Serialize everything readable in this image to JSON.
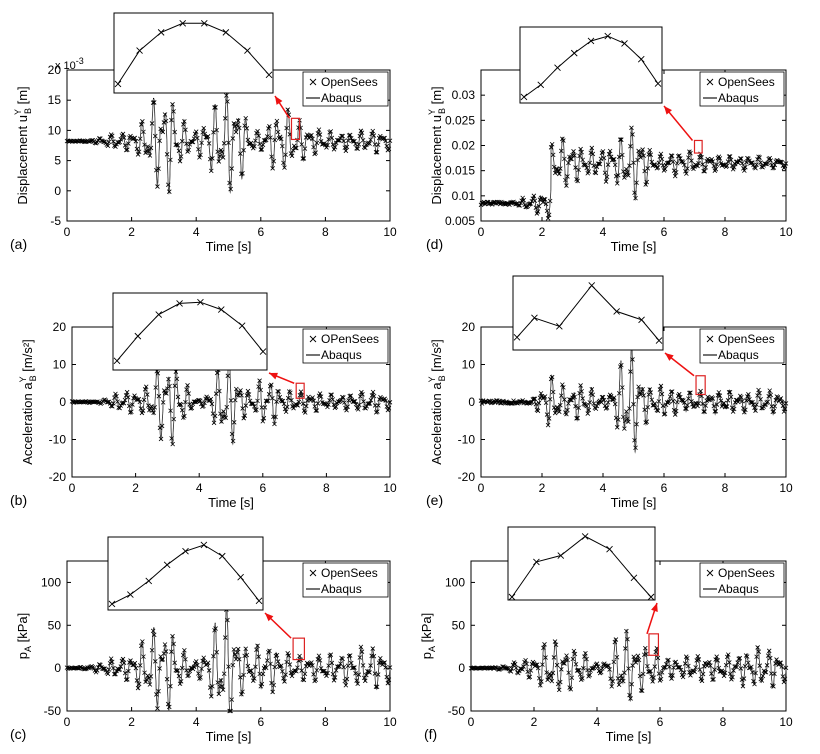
{
  "chart_data": [
    {
      "type": "line",
      "panel_label": "(a)",
      "xlabel": "Time [s]",
      "ylabel": "Displacement u",
      "ylabel_sub": "B",
      "ylabel_sup": "Y",
      "ylabel_unit": " [m]",
      "exponent_label": "x 10",
      "exponent_power": "-3",
      "xlim": [
        0,
        10
      ],
      "ylim": [
        -5,
        20
      ],
      "xticks": [
        "0",
        "2",
        "4",
        "6",
        "8",
        "10"
      ],
      "yticks": [
        "-5",
        "0",
        "5",
        "10",
        "15",
        "20"
      ],
      "legend": [
        "OpenSees",
        "Abaqus"
      ],
      "legend_position": "top-right",
      "grid": false,
      "signal": {
        "base": 8.2,
        "start_base": 8.3,
        "bursts": [
          [
            1.7,
            0.5,
            1.5
          ],
          [
            2.8,
            0.35,
            7
          ],
          [
            3.3,
            0.3,
            5
          ],
          [
            4.6,
            0.4,
            5.5
          ],
          [
            5.2,
            0.3,
            7
          ],
          [
            6.6,
            0.4,
            4
          ],
          [
            7.3,
            0.7,
            2.5
          ],
          [
            9.5,
            0.8,
            2
          ]
        ]
      },
      "zoom_box": {
        "x": [
          6.95,
          7.2
        ],
        "y": [
          8.5,
          12
        ]
      },
      "inset": {
        "points": [
          [
            0,
            0
          ],
          [
            1,
            0.55
          ],
          [
            2,
            0.85
          ],
          [
            3,
            1.0
          ],
          [
            4,
            1.0
          ],
          [
            5,
            0.85
          ],
          [
            6,
            0.55
          ],
          [
            7,
            0.15
          ]
        ],
        "ymin": -0.1,
        "ymax": 1.12
      }
    },
    {
      "type": "line",
      "panel_label": "(b)",
      "xlabel": "Time [s]",
      "ylabel": "Acceleration a",
      "ylabel_sub": "B",
      "ylabel_sup": "Y",
      "ylabel_unit": " [m/s²]",
      "xlim": [
        0,
        10
      ],
      "ylim": [
        -20,
        20
      ],
      "xticks": [
        "0",
        "2",
        "4",
        "6",
        "8",
        "10"
      ],
      "yticks": [
        "-20",
        "-10",
        "0",
        "10",
        "20"
      ],
      "legend": [
        "OPenSees",
        "Abaqus"
      ],
      "legend_position": "top-right",
      "grid": false,
      "signal": {
        "base": 0,
        "start_base": 0,
        "bursts": [
          [
            1.7,
            0.4,
            3
          ],
          [
            2.8,
            0.35,
            9
          ],
          [
            3.3,
            0.3,
            7
          ],
          [
            4.7,
            0.3,
            6
          ],
          [
            5.0,
            0.3,
            9
          ],
          [
            6.1,
            0.3,
            6
          ],
          [
            7.2,
            0.8,
            3
          ],
          [
            9.5,
            0.8,
            3
          ]
        ]
      },
      "zoom_box": {
        "x": [
          7.05,
          7.3
        ],
        "y": [
          1,
          5
        ]
      },
      "inset": {
        "points": [
          [
            0,
            0.05
          ],
          [
            1,
            0.45
          ],
          [
            2,
            0.8
          ],
          [
            3,
            0.98
          ],
          [
            4,
            1.0
          ],
          [
            5,
            0.88
          ],
          [
            6,
            0.62
          ],
          [
            7,
            0.2
          ]
        ],
        "ymin": -0.05,
        "ymax": 1.1
      }
    },
    {
      "type": "line",
      "panel_label": "(c)",
      "xlabel": "Time [s]",
      "ylabel": "p",
      "ylabel_sub": "A",
      "ylabel_sup": "",
      "ylabel_unit": " [kPa]",
      "xlim": [
        0,
        10
      ],
      "ylim": [
        -50,
        125
      ],
      "xticks": [
        "0",
        "2",
        "4",
        "6",
        "8",
        "10"
      ],
      "yticks": [
        "-50",
        "0",
        "50",
        "100"
      ],
      "legend": [
        "OpenSees",
        "Abaqus"
      ],
      "legend_position": "top-right",
      "grid": false,
      "signal": {
        "base": 0,
        "start_base": 0,
        "bursts": [
          [
            1.6,
            0.5,
            12
          ],
          [
            2.7,
            0.4,
            45
          ],
          [
            3.3,
            0.3,
            30
          ],
          [
            4.7,
            0.4,
            35
          ],
          [
            5.0,
            0.3,
            50
          ],
          [
            6.1,
            0.4,
            25
          ],
          [
            7.3,
            0.9,
            15
          ],
          [
            9.4,
            0.8,
            25
          ]
        ]
      },
      "zoom_box": {
        "x": [
          7.0,
          7.35
        ],
        "y": [
          10,
          35
        ]
      },
      "inset": {
        "points": [
          [
            0,
            0.05
          ],
          [
            1,
            0.2
          ],
          [
            2,
            0.42
          ],
          [
            3,
            0.68
          ],
          [
            4,
            0.9
          ],
          [
            5,
            1.0
          ],
          [
            6,
            0.82
          ],
          [
            7,
            0.48
          ],
          [
            8,
            0.1
          ]
        ],
        "ymin": 0.0,
        "ymax": 1.08
      }
    },
    {
      "type": "line",
      "panel_label": "(d)",
      "xlabel": "Time [s]",
      "ylabel": "Displacement u",
      "ylabel_sub": "B",
      "ylabel_sup": "Y",
      "ylabel_unit": " [m]",
      "xlim": [
        0,
        10
      ],
      "ylim": [
        0.005,
        0.035
      ],
      "xticks": [
        "0",
        "2",
        "4",
        "6",
        "8",
        "10"
      ],
      "yticks": [
        "0.005",
        "0.01",
        "0.015",
        "0.02",
        "0.025",
        "0.03"
      ],
      "legend": [
        "OpenSees",
        "Abaqus"
      ],
      "legend_position": "top-right",
      "grid": false,
      "signal": {
        "base": 0.0085,
        "start_base": 0.0085,
        "step_time": 2.3,
        "step_base": 0.0165,
        "bursts": [
          [
            1.9,
            0.4,
            0.002
          ],
          [
            2.6,
            0.3,
            0.004
          ],
          [
            3.2,
            0.4,
            0.003
          ],
          [
            4.4,
            0.5,
            0.004
          ],
          [
            5.1,
            0.3,
            0.006
          ],
          [
            6.5,
            0.6,
            0.002
          ],
          [
            8.5,
            1.5,
            0.0015
          ]
        ]
      },
      "zoom_box": {
        "x": [
          7.0,
          7.25
        ],
        "y": [
          0.0185,
          0.021
        ]
      },
      "inset": {
        "points": [
          [
            0,
            0.0
          ],
          [
            1,
            0.2
          ],
          [
            2,
            0.48
          ],
          [
            3,
            0.72
          ],
          [
            4,
            0.92
          ],
          [
            5,
            1.0
          ],
          [
            6,
            0.88
          ],
          [
            7,
            0.62
          ],
          [
            8,
            0.22
          ]
        ],
        "ymin": -0.05,
        "ymax": 1.1
      }
    },
    {
      "type": "line",
      "panel_label": "(e)",
      "xlabel": "Time [s]",
      "ylabel": "Acceleration a",
      "ylabel_sub": "B",
      "ylabel_sup": "Y",
      "ylabel_unit": " [m/s²]",
      "xlim": [
        0,
        10
      ],
      "ylim": [
        -20,
        20
      ],
      "xticks": [
        "0",
        "2",
        "4",
        "6",
        "8",
        "10"
      ],
      "yticks": [
        "-20",
        "-10",
        "0",
        "10",
        "20"
      ],
      "legend": [
        "OpenSees",
        "Abaqus"
      ],
      "legend_position": "top-right",
      "grid": false,
      "signal": {
        "base": 0,
        "start_base": 0,
        "bursts": [
          [
            2.3,
            0.3,
            7
          ],
          [
            3.3,
            0.4,
            5
          ],
          [
            4.7,
            0.3,
            8
          ],
          [
            5.0,
            0.3,
            10
          ],
          [
            6.0,
            0.4,
            4
          ],
          [
            7.5,
            0.8,
            3
          ],
          [
            9.5,
            0.8,
            3
          ]
        ]
      },
      "zoom_box": {
        "x": [
          7.05,
          7.35
        ],
        "y": [
          2,
          7
        ]
      },
      "inset": {
        "points": [
          [
            0,
            0.15
          ],
          [
            0.7,
            0.45
          ],
          [
            1.7,
            0.32
          ],
          [
            3,
            0.95
          ],
          [
            4,
            0.55
          ],
          [
            5,
            0.42
          ],
          [
            5.7,
            0.1
          ]
        ],
        "ymin": 0.0,
        "ymax": 1.05
      }
    },
    {
      "type": "line",
      "panel_label": "(f)",
      "xlabel": "Time [s]",
      "ylabel": "p",
      "ylabel_sub": "A",
      "ylabel_sup": "",
      "ylabel_unit": " [kPa]",
      "xlim": [
        0,
        10
      ],
      "ylim": [
        -50,
        125
      ],
      "xticks": [
        "0",
        "2",
        "4",
        "6",
        "8",
        "10"
      ],
      "yticks": [
        "-50",
        "0",
        "50",
        "100"
      ],
      "legend": [
        "OpenSees",
        "Abaqus"
      ],
      "legend_position": "top-right",
      "grid": false,
      "signal": {
        "base": 0,
        "start_base": 0,
        "bursts": [
          [
            1.7,
            0.4,
            10
          ],
          [
            2.5,
            0.3,
            30
          ],
          [
            3.3,
            0.4,
            25
          ],
          [
            4.8,
            0.3,
            45
          ],
          [
            5.6,
            0.4,
            25
          ],
          [
            7.2,
            0.8,
            15
          ],
          [
            9.3,
            0.8,
            25
          ]
        ]
      },
      "zoom_box": {
        "x": [
          5.65,
          5.95
        ],
        "y": [
          15,
          40
        ]
      },
      "inset": {
        "points": [
          [
            0,
            0.0
          ],
          [
            1,
            0.55
          ],
          [
            2,
            0.65
          ],
          [
            3,
            0.95
          ],
          [
            4,
            0.75
          ],
          [
            5,
            0.3
          ],
          [
            5.7,
            0.0
          ]
        ],
        "ymin": 0.0,
        "ymax": 1.05
      }
    }
  ]
}
